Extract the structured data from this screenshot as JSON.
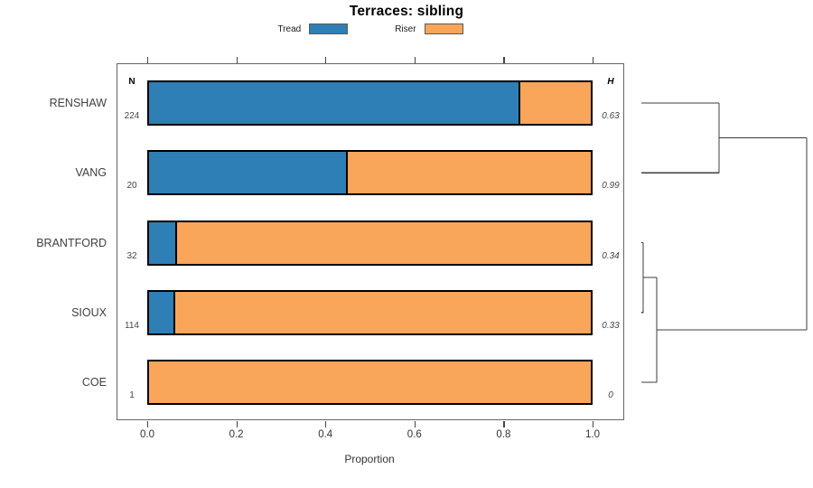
{
  "title": "Terraces: sibling",
  "columns": {
    "n_header": "N",
    "h_header": "H"
  },
  "legend": {
    "items": [
      {
        "label": "Tread",
        "color": "#2E7FB5"
      },
      {
        "label": "Riser",
        "color": "#F9A65A"
      }
    ]
  },
  "chart_data": {
    "type": "bar",
    "subtype": "horizontal-stacked-proportions-with-dendrogram",
    "title": "Terraces: sibling",
    "xlabel": "Proportion",
    "xlim": [
      0,
      1
    ],
    "x_ticks": [
      "0.0",
      "0.2",
      "0.4",
      "0.6",
      "0.8",
      "1.0"
    ],
    "grid": false,
    "legend_position": "top",
    "categories": [
      "RENSHAW",
      "VANG",
      "BRANTFORD",
      "SIOUX",
      "COE"
    ],
    "n_values": [
      "224",
      "20",
      "32",
      "114",
      "1"
    ],
    "h_values": [
      "0.63",
      "0.99",
      "0.34",
      "0.33",
      "0"
    ],
    "series": [
      {
        "name": "Tread",
        "color": "#2E7FB5",
        "values": [
          0.84,
          0.45,
          0.063,
          0.059,
          0
        ]
      },
      {
        "name": "Riser",
        "color": "#F9A65A",
        "values": [
          0.16,
          0.55,
          0.937,
          0.941,
          1
        ]
      }
    ],
    "dendrogram": {
      "orientation": "right",
      "leaves": [
        "RENSHAW",
        "VANG",
        "BRANTFORD",
        "SIOUX",
        "COE"
      ],
      "merges": [
        {
          "id": "m1",
          "children": [
            "BRANTFORD",
            "SIOUX"
          ],
          "height": 0.011
        },
        {
          "id": "m2",
          "children": [
            "m1",
            "COE"
          ],
          "height": 0.093
        },
        {
          "id": "m3",
          "children": [
            "RENSHAW",
            "VANG"
          ],
          "height": 0.47
        },
        {
          "id": "m4",
          "children": [
            "m3",
            "m2"
          ],
          "height": 1.0
        }
      ]
    }
  }
}
